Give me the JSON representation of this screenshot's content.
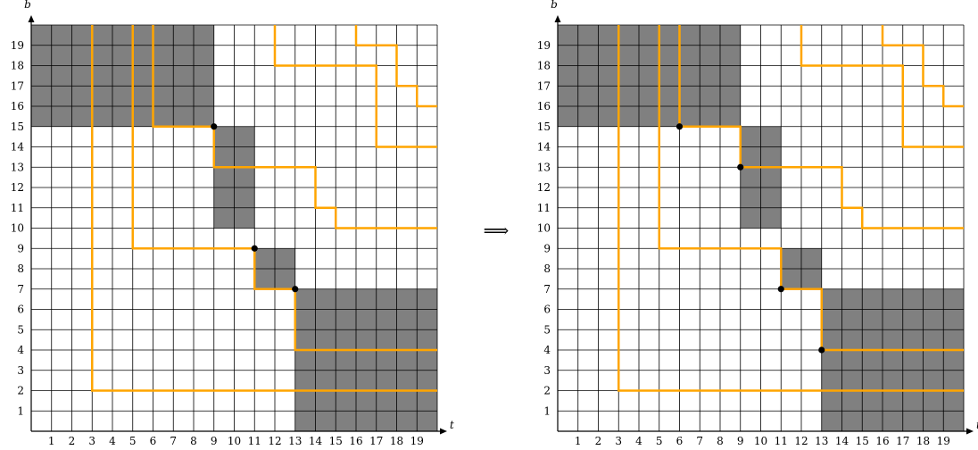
{
  "colors": {
    "shade": "#808080",
    "grid": "#000000",
    "path": "#ffa500",
    "dot": "#000000",
    "background": "#ffffff"
  },
  "axes": {
    "x_label": "t",
    "y_label": "b",
    "x_ticks": [
      1,
      2,
      3,
      4,
      5,
      6,
      7,
      8,
      9,
      10,
      11,
      12,
      13,
      14,
      15,
      16,
      17,
      18,
      19
    ],
    "y_ticks": [
      1,
      2,
      3,
      4,
      5,
      6,
      7,
      8,
      9,
      10,
      11,
      12,
      13,
      14,
      15,
      16,
      17,
      18,
      19
    ],
    "cells": 20
  },
  "implies_symbol": "⟹",
  "panels": [
    {
      "id": "before",
      "shaded_rects": [
        [
          0,
          9,
          15,
          20
        ],
        [
          9,
          11,
          10,
          15
        ],
        [
          11,
          13,
          7,
          9
        ],
        [
          13,
          20,
          0,
          7
        ]
      ],
      "paths": [
        [
          [
            3,
            20
          ],
          [
            3,
            2
          ],
          [
            20,
            2
          ]
        ],
        [
          [
            5,
            20
          ],
          [
            5,
            9
          ],
          [
            11,
            9
          ],
          [
            11,
            7
          ],
          [
            13,
            7
          ],
          [
            13,
            4
          ],
          [
            20,
            4
          ]
        ],
        [
          [
            6,
            20
          ],
          [
            6,
            15
          ],
          [
            9,
            15
          ],
          [
            9,
            13
          ],
          [
            14,
            13
          ],
          [
            14,
            11
          ],
          [
            15,
            11
          ],
          [
            15,
            10
          ],
          [
            20,
            10
          ]
        ],
        [
          [
            12,
            20
          ],
          [
            12,
            18
          ],
          [
            17,
            18
          ],
          [
            17,
            14
          ],
          [
            20,
            14
          ]
        ],
        [
          [
            16,
            20
          ],
          [
            16,
            19
          ],
          [
            18,
            19
          ],
          [
            18,
            17
          ],
          [
            19,
            17
          ],
          [
            19,
            16
          ],
          [
            20,
            16
          ]
        ]
      ],
      "dots": [
        [
          9,
          15
        ],
        [
          11,
          9
        ],
        [
          13,
          7
        ]
      ]
    },
    {
      "id": "after",
      "shaded_rects": [
        [
          0,
          9,
          15,
          20
        ],
        [
          9,
          11,
          10,
          15
        ],
        [
          11,
          13,
          7,
          9
        ],
        [
          13,
          20,
          0,
          7
        ]
      ],
      "paths": [
        [
          [
            3,
            20
          ],
          [
            3,
            2
          ],
          [
            20,
            2
          ]
        ],
        [
          [
            5,
            20
          ],
          [
            5,
            9
          ],
          [
            11,
            9
          ],
          [
            11,
            7
          ],
          [
            13,
            7
          ],
          [
            13,
            4
          ],
          [
            20,
            4
          ]
        ],
        [
          [
            6,
            20
          ],
          [
            6,
            15
          ],
          [
            9,
            15
          ],
          [
            9,
            13
          ],
          [
            14,
            13
          ],
          [
            14,
            11
          ],
          [
            15,
            11
          ],
          [
            15,
            10
          ],
          [
            20,
            10
          ]
        ],
        [
          [
            12,
            20
          ],
          [
            12,
            18
          ],
          [
            17,
            18
          ],
          [
            17,
            14
          ],
          [
            20,
            14
          ]
        ],
        [
          [
            16,
            20
          ],
          [
            16,
            19
          ],
          [
            18,
            19
          ],
          [
            18,
            17
          ],
          [
            19,
            17
          ],
          [
            19,
            16
          ],
          [
            20,
            16
          ]
        ]
      ],
      "dots": [
        [
          6,
          15
        ],
        [
          9,
          13
        ],
        [
          11,
          7
        ],
        [
          13,
          4
        ]
      ]
    }
  ]
}
